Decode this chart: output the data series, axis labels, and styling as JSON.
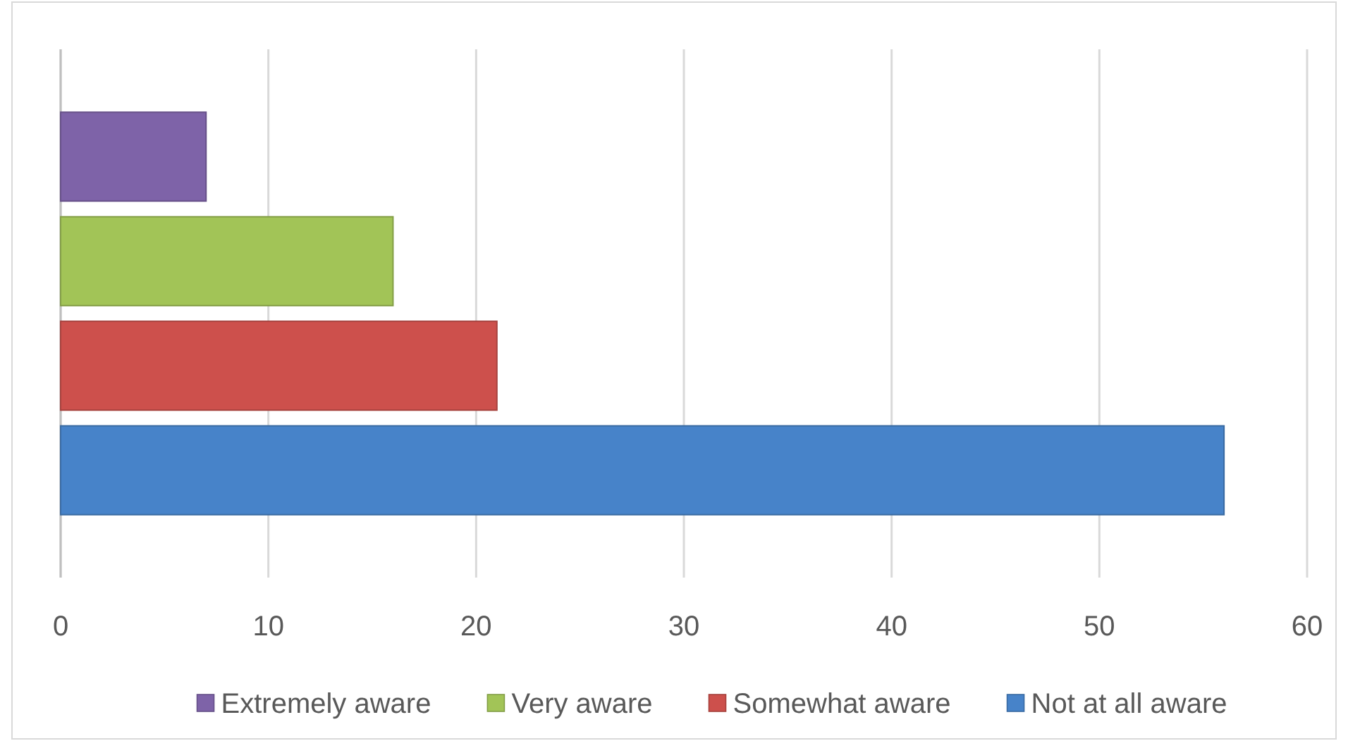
{
  "chart_data": {
    "type": "bar",
    "orientation": "horizontal",
    "categories": [
      null
    ],
    "series": [
      {
        "name": "Extremely aware",
        "color": "#7e63a8",
        "values": [
          7
        ]
      },
      {
        "name": "Very aware",
        "color": "#a2c457",
        "values": [
          16
        ]
      },
      {
        "name": "Somewhat aware",
        "color": "#cd504c",
        "values": [
          21
        ]
      },
      {
        "name": "Not at all aware",
        "color": "#4783c9",
        "values": [
          56
        ]
      }
    ],
    "xlim": [
      0,
      60
    ],
    "xticks": [
      0,
      10,
      20,
      30,
      40,
      50,
      60
    ],
    "grid": "x",
    "legend": "bottom",
    "tick_labels": "x"
  }
}
